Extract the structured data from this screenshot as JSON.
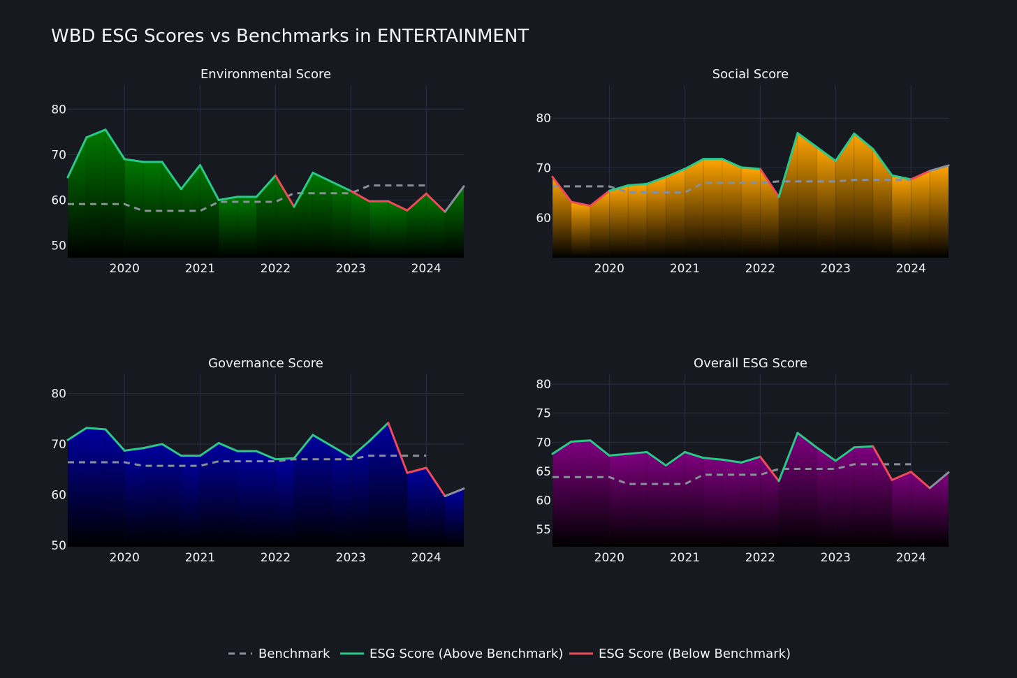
{
  "title": "WBD ESG Scores vs Benchmarks in ENTERTAINMENT",
  "legend": {
    "benchmark": "Benchmark",
    "above": "ESG Score (Above Benchmark)",
    "below": "ESG Score (Below Benchmark)"
  },
  "colors": {
    "background": "#16191f",
    "grid": "#283040",
    "above": "#2bc88a",
    "below": "#ef4a5a",
    "benchmark": "#8a8f9a",
    "environmental_fill": "#007a00",
    "social_fill": "#ffa500",
    "governance_fill": "#0000a0",
    "overall_fill": "#800080"
  },
  "chart_data": [
    {
      "type": "area",
      "title": "Environmental Score",
      "fill_color": "#007a00",
      "x": [
        "2019-04-01",
        "2019-07-01",
        "2019-10-01",
        "2020-01-01",
        "2020-04-01",
        "2020-07-01",
        "2020-10-01",
        "2021-01-01",
        "2021-04-01",
        "2021-07-01",
        "2021-10-01",
        "2022-01-01",
        "2022-04-01",
        "2022-07-01",
        "2022-10-01",
        "2023-01-01",
        "2023-04-01",
        "2023-07-01",
        "2023-10-01",
        "2024-01-01",
        "2024-04-01",
        "2024-07-01"
      ],
      "score": [
        65,
        73.8,
        75.5,
        69,
        68.4,
        68.4,
        62.4,
        67.7,
        60,
        60.7,
        60.7,
        65.4,
        58.5,
        66,
        64,
        62,
        59.7,
        59.7,
        57.7,
        61.4,
        57.4,
        63
      ],
      "benchmark": [
        59.1,
        59.1,
        59.1,
        59.1,
        57.6,
        57.6,
        57.6,
        57.6,
        59.6,
        59.6,
        59.6,
        59.6,
        61.5,
        61.5,
        61.5,
        61.5,
        63.2,
        63.2,
        63.2,
        63.2,
        null,
        null
      ],
      "xticks": [
        "2020",
        "2021",
        "2022",
        "2023",
        "2024"
      ],
      "yticks": [
        50,
        60,
        70,
        80
      ],
      "ylim": [
        47.3,
        85.3
      ]
    },
    {
      "type": "area",
      "title": "Social Score",
      "fill_color": "#ffa500",
      "x": [
        "2019-04-01",
        "2019-07-01",
        "2019-10-01",
        "2020-01-01",
        "2020-04-01",
        "2020-07-01",
        "2020-10-01",
        "2021-01-01",
        "2021-04-01",
        "2021-07-01",
        "2021-10-01",
        "2022-01-01",
        "2022-04-01",
        "2022-07-01",
        "2022-10-01",
        "2023-01-01",
        "2023-04-01",
        "2023-07-01",
        "2023-10-01",
        "2024-01-01",
        "2024-04-01",
        "2024-07-01"
      ],
      "score": [
        68.2,
        63.2,
        62.4,
        65.4,
        66.5,
        66.8,
        68.2,
        69.8,
        71.8,
        71.8,
        70.1,
        69.8,
        64.2,
        77,
        74.2,
        71.4,
        76.9,
        73.8,
        68.5,
        67.7,
        69.4,
        70.5
      ],
      "benchmark": [
        66.3,
        66.3,
        66.3,
        66.3,
        65.1,
        65.1,
        65.1,
        65.1,
        67.0,
        67.0,
        67.0,
        67.0,
        67.3,
        67.3,
        67.3,
        67.3,
        67.6,
        67.6,
        67.6,
        67.6,
        null,
        null
      ],
      "xticks": [
        "2020",
        "2021",
        "2022",
        "2023",
        "2024"
      ],
      "yticks": [
        60,
        70,
        80
      ],
      "ylim": [
        52.0,
        86.6
      ]
    },
    {
      "type": "area",
      "title": "Governance Score",
      "fill_color": "#0000a0",
      "x": [
        "2019-04-01",
        "2019-07-01",
        "2019-10-01",
        "2020-01-01",
        "2020-04-01",
        "2020-07-01",
        "2020-10-01",
        "2021-01-01",
        "2021-04-01",
        "2021-07-01",
        "2021-10-01",
        "2022-01-01",
        "2022-04-01",
        "2022-07-01",
        "2022-10-01",
        "2023-01-01",
        "2023-04-01",
        "2023-07-01",
        "2023-10-01",
        "2024-01-01",
        "2024-04-01",
        "2024-07-01"
      ],
      "score": [
        70.8,
        73.2,
        72.9,
        68.7,
        69.2,
        70,
        67.7,
        67.7,
        70.2,
        68.6,
        68.6,
        67,
        67.2,
        71.8,
        69.6,
        67.4,
        70.6,
        74.2,
        64.3,
        65.3,
        59.7,
        61.2
      ],
      "benchmark": [
        66.4,
        66.4,
        66.4,
        66.4,
        65.7,
        65.7,
        65.7,
        65.7,
        66.6,
        66.6,
        66.6,
        66.6,
        67.0,
        67.0,
        67.0,
        67.0,
        67.7,
        67.7,
        67.7,
        67.7,
        null,
        null
      ],
      "xticks": [
        "2020",
        "2021",
        "2022",
        "2023",
        "2024"
      ],
      "yticks": [
        50,
        60,
        70,
        80
      ],
      "ylim": [
        49.7,
        83.8
      ]
    },
    {
      "type": "area",
      "title": "Overall ESG Score",
      "fill_color": "#800080",
      "x": [
        "2019-04-01",
        "2019-07-01",
        "2019-10-01",
        "2020-01-01",
        "2020-04-01",
        "2020-07-01",
        "2020-10-01",
        "2021-01-01",
        "2021-04-01",
        "2021-07-01",
        "2021-10-01",
        "2022-01-01",
        "2022-04-01",
        "2022-07-01",
        "2022-10-01",
        "2023-01-01",
        "2023-04-01",
        "2023-07-01",
        "2023-10-01",
        "2024-01-01",
        "2024-04-01",
        "2024-07-01"
      ],
      "score": [
        68,
        70.1,
        70.3,
        67.7,
        68,
        68.3,
        66,
        68.3,
        67.3,
        67,
        66.5,
        67.5,
        63.3,
        71.6,
        69.1,
        66.8,
        69.1,
        69.3,
        63.5,
        64.9,
        62.1,
        64.8
      ],
      "benchmark": [
        64.0,
        64.0,
        64.0,
        64.0,
        62.8,
        62.8,
        62.8,
        62.8,
        64.4,
        64.4,
        64.4,
        64.4,
        65.4,
        65.4,
        65.4,
        65.4,
        66.2,
        66.2,
        66.2,
        66.2,
        null,
        null
      ],
      "xticks": [
        "2020",
        "2021",
        "2022",
        "2023",
        "2024"
      ],
      "yticks": [
        55,
        60,
        65,
        70,
        75,
        80
      ],
      "ylim": [
        52.0,
        81.7
      ]
    }
  ]
}
